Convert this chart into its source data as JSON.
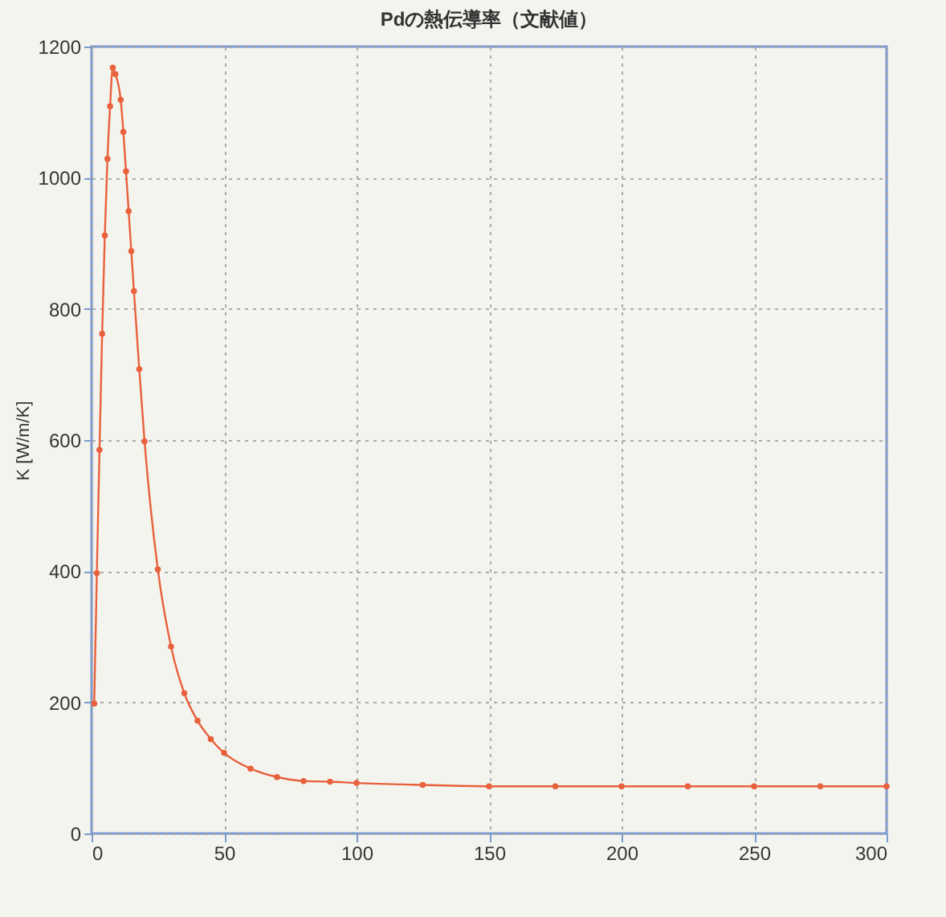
{
  "chart_data": {
    "type": "line",
    "title": "Pdの熱伝導率（文献値）",
    "ylabel": "K [W/m/K]",
    "x": [
      1,
      2,
      3,
      4,
      5,
      6,
      7,
      8,
      9,
      11,
      12,
      13,
      14,
      15,
      16,
      18,
      20,
      25,
      30,
      35,
      40,
      45,
      50,
      60,
      70,
      80,
      90,
      100,
      125,
      150,
      175,
      200,
      225,
      250,
      275,
      300
    ],
    "series": [
      {
        "color": "#e8603c",
        "values": [
          198,
          397,
          585,
          762,
          912,
          1029,
          1109,
          1168,
          1158,
          1119,
          1070,
          1010,
          949,
          888,
          827,
          708,
          598,
          403,
          285,
          214,
          172,
          144,
          123,
          99,
          86,
          80,
          79,
          77,
          74,
          72,
          72,
          72,
          72,
          72,
          72,
          72
        ]
      }
    ],
    "xlim": [
      0,
      300
    ],
    "xticks": [
      0,
      50,
      100,
      150,
      200,
      250,
      300
    ],
    "ylim": [
      0,
      1200
    ],
    "yticks": [
      0,
      200,
      400,
      600,
      800,
      1000,
      1200
    ],
    "grid": true,
    "marker": "circle",
    "line_style": "solid"
  }
}
